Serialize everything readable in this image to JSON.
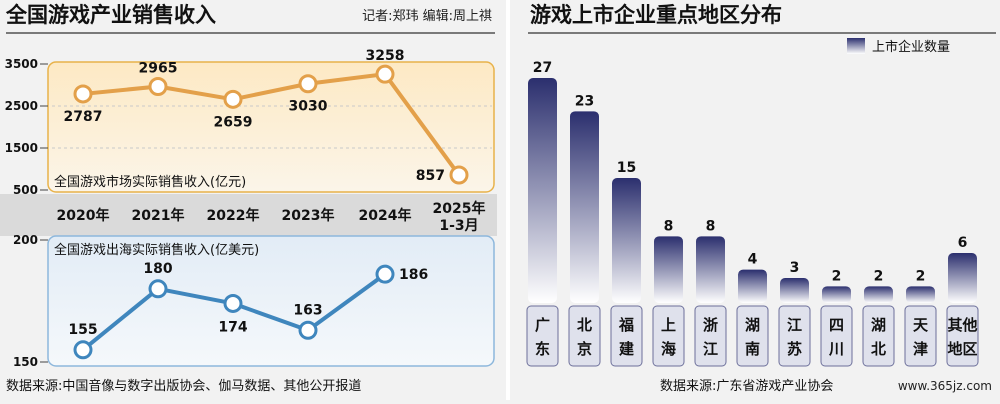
{
  "left": {
    "title": "全国游戏产业销售收入",
    "credit": "记者:郑玮  编辑:周上祺",
    "source": "数据来源:中国音像与数字出版协会、伽马数据、其他公开报道"
  },
  "right": {
    "title": "游戏上市企业重点地区分布",
    "source": "数据来源:广东省游戏产业协会",
    "watermark": "www.365jz.com"
  },
  "chart_data": [
    {
      "type": "line",
      "title": "全国游戏市场实际销售收入(亿元)",
      "categories": [
        "2020年",
        "2021年",
        "2022年",
        "2023年",
        "2024年",
        "2025年\n1-3月"
      ],
      "values": [
        2787,
        2965,
        2659,
        3030,
        3258,
        857
      ],
      "yticks": [
        "3500",
        "2500",
        "1500",
        "500"
      ],
      "ylim": [
        500,
        3500
      ],
      "color": "#e3a04a"
    },
    {
      "type": "line",
      "title": "全国游戏出海实际销售收入(亿美元)",
      "categories": [
        "2020年",
        "2021年",
        "2022年",
        "2023年",
        "2024年"
      ],
      "values": [
        155,
        180,
        174,
        163,
        186
      ],
      "yticks": [
        "200",
        "150"
      ],
      "ylim": [
        150,
        200
      ],
      "color": "#3f86bd"
    },
    {
      "type": "bar",
      "legend": "上市企业数量",
      "categories": [
        "广东",
        "北京",
        "福建",
        "上海",
        "浙江",
        "湖南",
        "江苏",
        "四川",
        "湖北",
        "天津",
        "其他地区"
      ],
      "values": [
        27,
        23,
        15,
        8,
        8,
        4,
        3,
        2,
        2,
        2,
        6
      ],
      "ylim": [
        0,
        27
      ],
      "color": "#2b2f6e"
    }
  ]
}
